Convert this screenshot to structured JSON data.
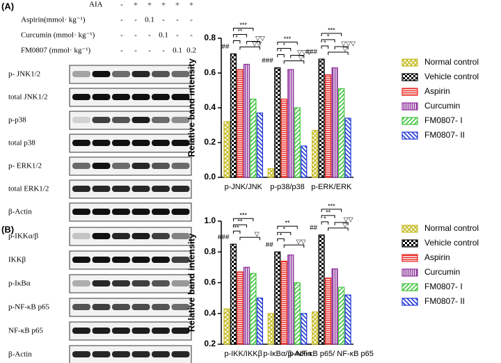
{
  "blots": {
    "panels": [
      "(A)",
      "(B)"
    ],
    "treatments": [
      {
        "name": "AIA",
        "marks": [
          "-",
          "+",
          "+",
          "+",
          "+",
          "+"
        ]
      },
      {
        "name": "Aspirin(mmol· kg⁻¹)",
        "marks": [
          "-",
          "-",
          "0.1",
          "-",
          "-",
          "-"
        ]
      },
      {
        "name": "Curcumin (mmol· kg⁻¹)",
        "marks": [
          "-",
          "-",
          "-",
          "0.1",
          "-",
          "-"
        ]
      },
      {
        "name": "FM0807 (mmol· kg⁻¹)",
        "marks": [
          "-",
          "-",
          "-",
          "-",
          "0.1",
          "0.2"
        ]
      }
    ],
    "rows_a": [
      "p- JNK1/2",
      "total JNK1/2",
      "p-p38",
      "total p38",
      "p- ERK1/2",
      "total ERK1/2",
      "β-Actin"
    ],
    "rows_b": [
      "p-IKKα/β",
      "IKKβ",
      "p-IκBα",
      "p-NF-κB p65",
      "NF-κB p65",
      "β-Actin"
    ]
  },
  "chart_data": [
    {
      "type": "bar",
      "ylabel": "Relative band intensity",
      "categories": [
        "p-JNK/JNK",
        "p-p38/p38",
        "p-ERK/ERK"
      ],
      "series": [
        {
          "name": "Normal control",
          "color": "#c8bf2e",
          "values": [
            0.32,
            0.05,
            0.27
          ]
        },
        {
          "name": "Vehicle control",
          "color": "#000000",
          "values": [
            0.71,
            0.63,
            0.68
          ]
        },
        {
          "name": "Aspirin",
          "color": "#e8261f",
          "values": [
            0.62,
            0.45,
            0.59
          ]
        },
        {
          "name": "Curcumin",
          "color": "#8b2f9a",
          "values": [
            0.65,
            0.62,
            0.63
          ]
        },
        {
          "name": "FM0807- I",
          "color": "#3ec43a",
          "values": [
            0.45,
            0.4,
            0.51
          ]
        },
        {
          "name": "FM0807- II",
          "color": "#1f35d6",
          "values": [
            0.37,
            0.18,
            0.34
          ]
        }
      ],
      "ylim": [
        0,
        0.8
      ],
      "yticks": [
        {
          "value": 0,
          "label": "0.0"
        },
        0.2,
        0.4,
        0.6,
        0.8
      ],
      "annotations": [
        [
          "##",
          "*",
          "**",
          "***",
          "▽▽",
          "▽▽"
        ],
        [
          "###",
          "*",
          "*",
          "***",
          "▽",
          "▽▽▽"
        ],
        [
          "###",
          "*",
          "*",
          "***",
          "▽",
          "▽▽▽"
        ]
      ]
    },
    {
      "type": "bar",
      "ylabel": "Relative band intensity",
      "categories": [
        "p-IKK/IKKβ",
        "p-IκBα/β-Actin",
        "p-NF-κB p65/ NF-κB p65"
      ],
      "series": [
        {
          "name": "Normal control",
          "color": "#c8bf2e",
          "values": [
            0.43,
            0.4,
            0.41
          ]
        },
        {
          "name": "Vehicle control",
          "color": "#000000",
          "values": [
            0.85,
            0.8,
            0.91
          ]
        },
        {
          "name": "Aspirin",
          "color": "#e8261f",
          "values": [
            0.67,
            0.74,
            0.63
          ]
        },
        {
          "name": "Curcumin",
          "color": "#8b2f9a",
          "values": [
            0.7,
            0.78,
            0.69
          ]
        },
        {
          "name": "FM0807- I",
          "color": "#3ec43a",
          "values": [
            0.66,
            0.6,
            0.57
          ]
        },
        {
          "name": "FM0807- II",
          "color": "#1f35d6",
          "values": [
            0.5,
            0.4,
            0.52
          ]
        }
      ],
      "ylim": [
        0.2,
        1.0
      ],
      "yticks": [
        0.2,
        0.4,
        0.6,
        0.8,
        {
          "value": 1,
          "label": "1.0"
        }
      ],
      "annotations": [
        [
          "###",
          "**",
          "**",
          "***",
          "▽"
        ],
        [
          "##",
          "*",
          "*",
          "**",
          "▽▽"
        ],
        [
          "##",
          "*",
          "**",
          "***",
          "▽",
          "▽▽"
        ]
      ]
    }
  ]
}
